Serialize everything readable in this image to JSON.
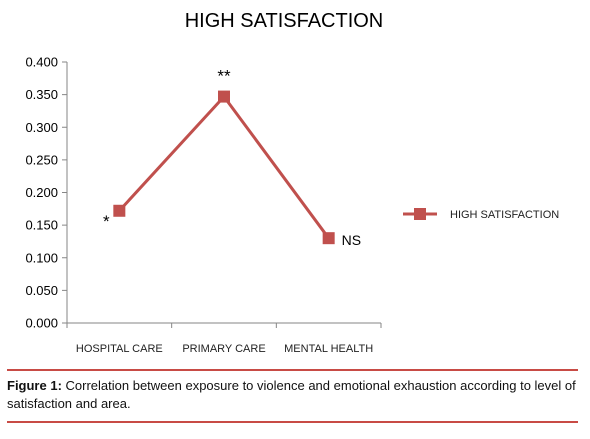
{
  "chart_data": {
    "type": "line",
    "title": "HIGH SATISFACTION",
    "categories": [
      "HOSPITAL CARE",
      "PRIMARY CARE",
      "MENTAL HEALTH"
    ],
    "series": [
      {
        "name": "HIGH SATISFACTION",
        "values": [
          0.172,
          0.347,
          0.13
        ],
        "color": "#c0504d"
      }
    ],
    "annotations": [
      "*",
      "**",
      "NS"
    ],
    "yticks": [
      "0.000",
      "0.050",
      "0.100",
      "0.150",
      "0.200",
      "0.250",
      "0.300",
      "0.350",
      "0.400"
    ],
    "ylim": [
      0,
      0.4
    ],
    "grid": false,
    "legend_position": "right"
  },
  "caption": {
    "label": "Figure 1:",
    "text": " Correlation between exposure to violence and emotional exhaustion according to level of satisfaction and area."
  }
}
